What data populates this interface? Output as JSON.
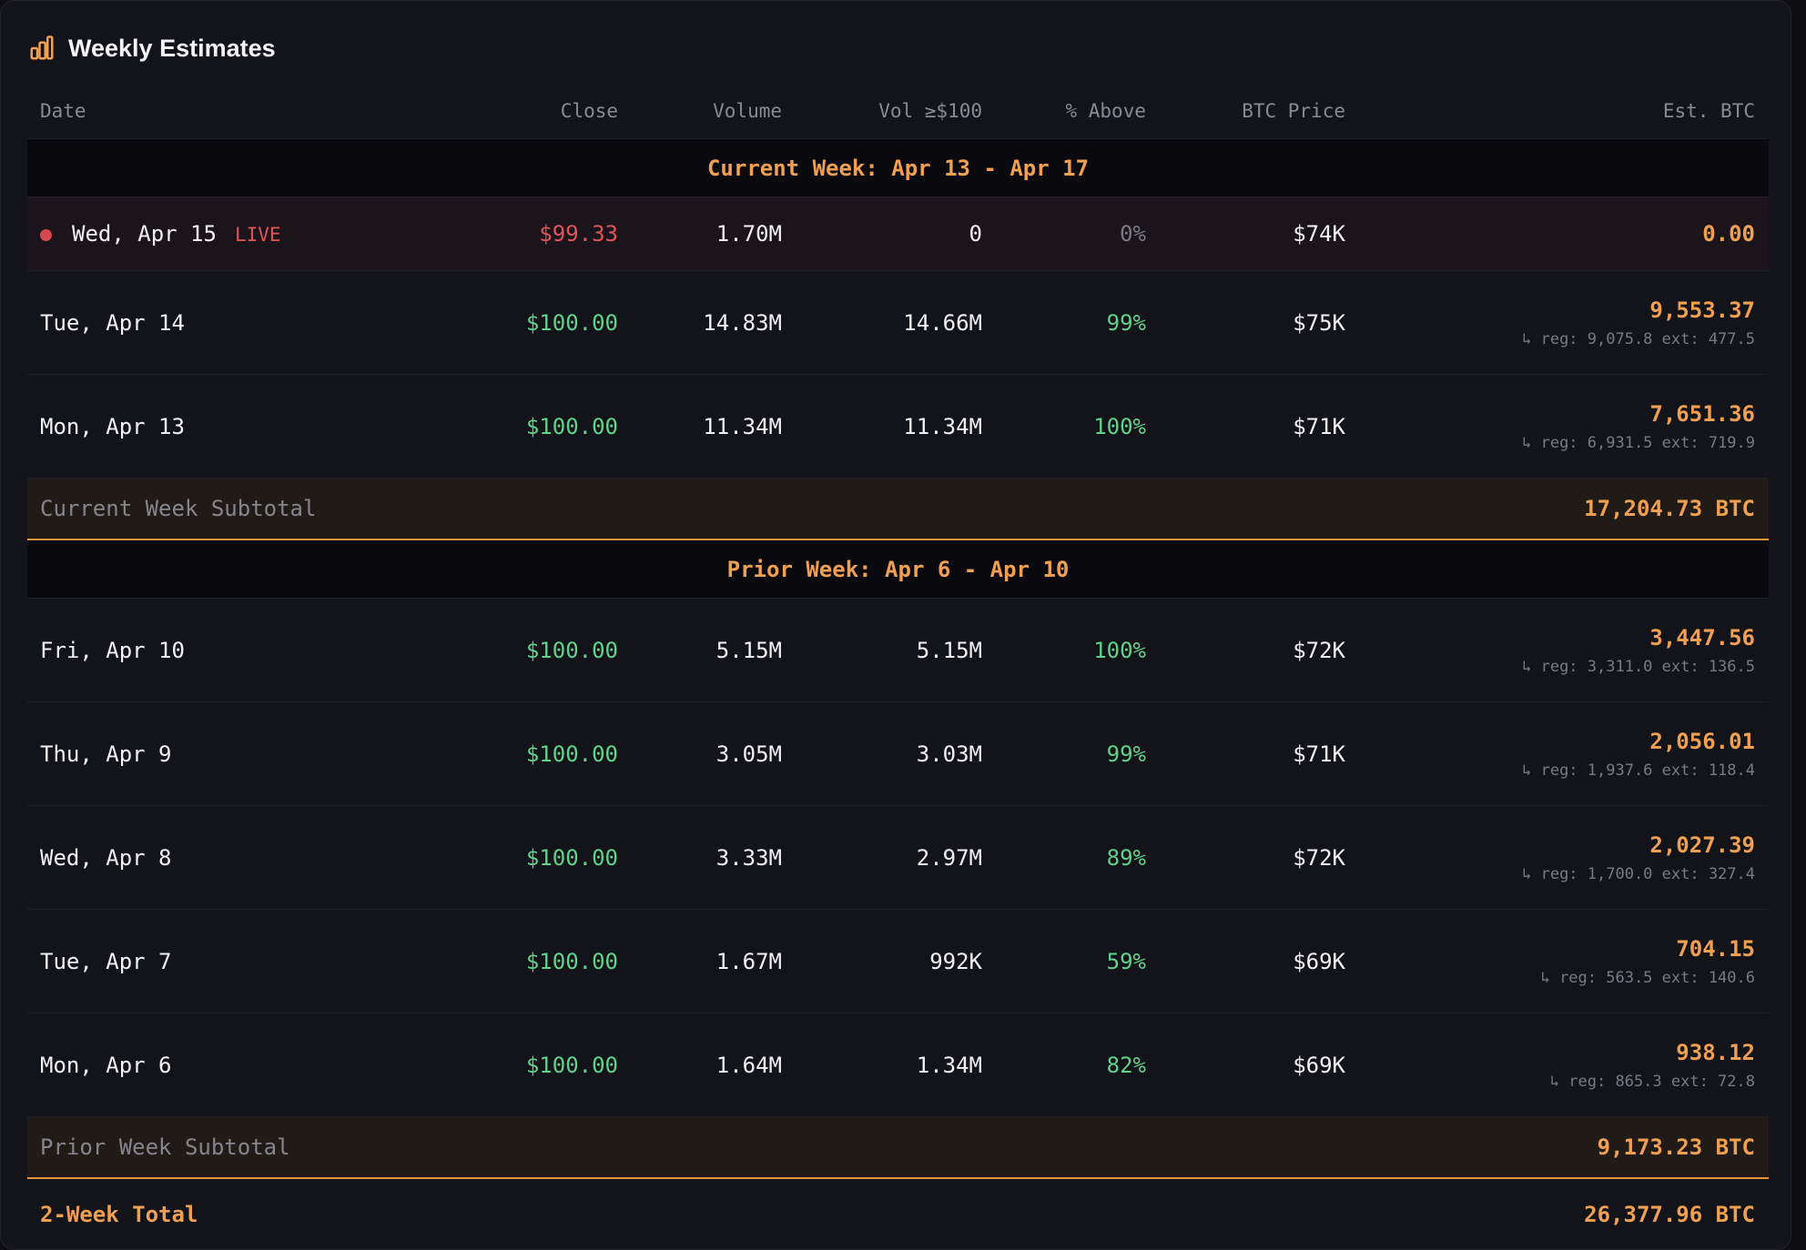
{
  "header": {
    "title": "Weekly Estimates"
  },
  "table": {
    "columns": [
      "Date",
      "Close",
      "Volume",
      "Vol ≥$100",
      "% Above",
      "BTC Price",
      "Est. BTC"
    ],
    "sections": [
      {
        "title": "Current Week: Apr 13 - Apr 17",
        "rows": [
          {
            "cells": [
              "Wed, Apr 15",
              "$99.33",
              "1.70M",
              "0",
              "0%",
              "$74K",
              "0.00"
            ],
            "badge": "LIVE"
          },
          {
            "cells": [
              "Tue, Apr 14",
              "$100.00",
              "14.83M",
              "14.66M",
              "99%",
              "$75K",
              "9,553.37"
            ],
            "detail": "↳ reg: 9,075.8 ext: 477.5"
          },
          {
            "cells": [
              "Mon, Apr 13",
              "$100.00",
              "11.34M",
              "11.34M",
              "100%",
              "$71K",
              "7,651.36"
            ],
            "detail": "↳ reg: 6,931.5 ext: 719.9"
          }
        ],
        "subtotal": {
          "label": "Current Week Subtotal",
          "value": "17,204.73 BTC"
        }
      },
      {
        "title": "Prior Week: Apr 6 - Apr 10",
        "rows": [
          {
            "cells": [
              "Fri, Apr 10",
              "$100.00",
              "5.15M",
              "5.15M",
              "100%",
              "$72K",
              "3,447.56"
            ],
            "detail": "↳ reg: 3,311.0 ext: 136.5"
          },
          {
            "cells": [
              "Thu, Apr 9",
              "$100.00",
              "3.05M",
              "3.03M",
              "99%",
              "$71K",
              "2,056.01"
            ],
            "detail": "↳ reg: 1,937.6 ext: 118.4"
          },
          {
            "cells": [
              "Wed, Apr 8",
              "$100.00",
              "3.33M",
              "2.97M",
              "89%",
              "$72K",
              "2,027.39"
            ],
            "detail": "↳ reg: 1,700.0 ext: 327.4"
          },
          {
            "cells": [
              "Tue, Apr 7",
              "$100.00",
              "1.67M",
              "992K",
              "59%",
              "$69K",
              "704.15"
            ],
            "detail": "↳ reg: 563.5 ext: 140.6"
          },
          {
            "cells": [
              "Mon, Apr 6",
              "$100.00",
              "1.64M",
              "1.34M",
              "82%",
              "$69K",
              "938.12"
            ],
            "detail": "↳ reg: 865.3 ext: 72.8"
          }
        ],
        "subtotal": {
          "label": "Prior Week Subtotal",
          "value": "9,173.23 BTC"
        }
      }
    ],
    "total": {
      "label": "2-Week Total",
      "value": "26,377.96 BTC"
    }
  }
}
